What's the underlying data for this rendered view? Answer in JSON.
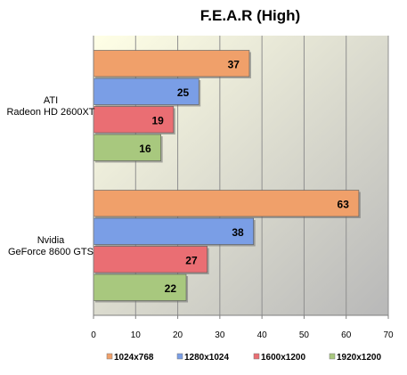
{
  "chart_data": {
    "type": "bar",
    "orientation": "horizontal",
    "title": "F.E.A.R (High)",
    "categories": [
      [
        "ATI",
        "Radeon HD 2600XT"
      ],
      [
        "Nvidia",
        "GeForce 8600 GTS"
      ]
    ],
    "series": [
      {
        "name": "1024x768",
        "values": [
          37,
          63
        ],
        "color": "#f0a06a"
      },
      {
        "name": "1280x1024",
        "values": [
          25,
          38
        ],
        "color": "#7a9ee6"
      },
      {
        "name": "1600x1200",
        "values": [
          19,
          27
        ],
        "color": "#ea6e73"
      },
      {
        "name": "1920x1200",
        "values": [
          16,
          22
        ],
        "color": "#a8c87e"
      }
    ],
    "xlim": [
      0,
      70
    ],
    "xticks": [
      0,
      10,
      20,
      30,
      40,
      50,
      60,
      70
    ],
    "grid": true,
    "legend_position": "bottom"
  }
}
